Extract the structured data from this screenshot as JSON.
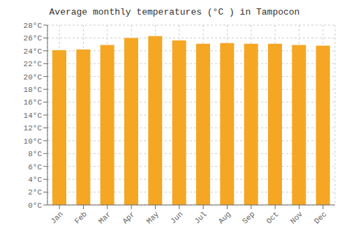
{
  "chart_data": {
    "type": "bar",
    "title": "Average monthly temperatures (°C ) in Tampocon",
    "categories": [
      "Jan",
      "Feb",
      "Mar",
      "Apr",
      "May",
      "Jun",
      "Jul",
      "Aug",
      "Sep",
      "Oct",
      "Nov",
      "Dec"
    ],
    "values": [
      24.1,
      24.2,
      24.9,
      26.0,
      26.3,
      25.6,
      25.1,
      25.2,
      25.1,
      25.1,
      24.9,
      24.8
    ],
    "color": "#F5A623",
    "ylim": [
      0,
      28
    ],
    "yticks": [
      {
        "value": 0,
        "label": "0°C"
      },
      {
        "value": 2,
        "label": "2°C"
      },
      {
        "value": 4,
        "label": "4°C"
      },
      {
        "value": 6,
        "label": "6°C"
      },
      {
        "value": 8,
        "label": "8°C"
      },
      {
        "value": 10,
        "label": "10°C"
      },
      {
        "value": 12,
        "label": "12°C"
      },
      {
        "value": 14,
        "label": "14°C"
      },
      {
        "value": 16,
        "label": "16°C"
      },
      {
        "value": 18,
        "label": "18°C"
      },
      {
        "value": 20,
        "label": "20°C"
      },
      {
        "value": 22,
        "label": "22°C"
      },
      {
        "value": 24,
        "label": "24°C"
      },
      {
        "value": 26,
        "label": "26°C"
      },
      {
        "value": 28,
        "label": "28°C"
      }
    ],
    "grid": true
  }
}
